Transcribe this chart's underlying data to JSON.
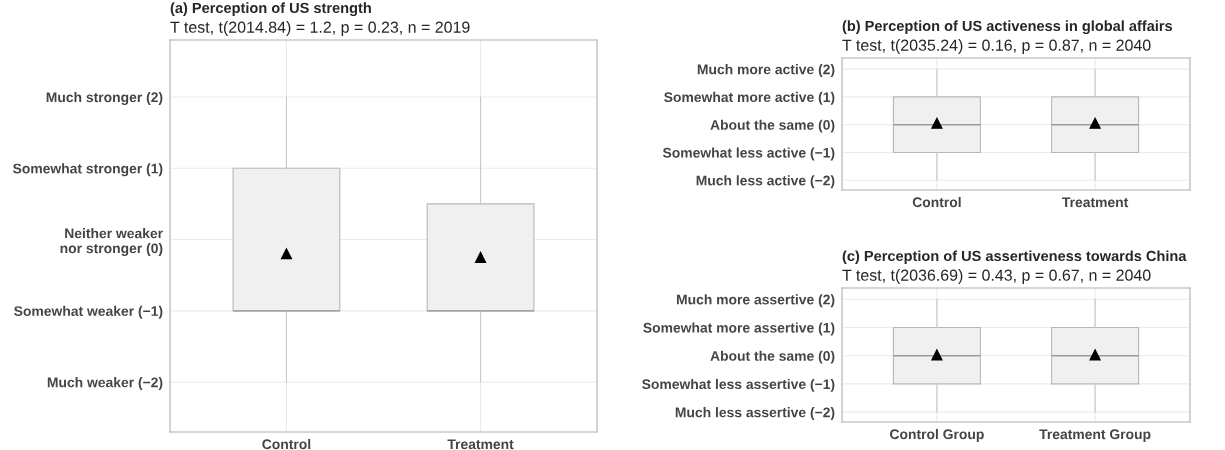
{
  "chart_data": [
    {
      "type": "box",
      "title": "(a) Perception of US strength",
      "subtitle": "T test, t(2014.84) = 1.2, p = 0.23, n = 2019",
      "categories": [
        "Control",
        "Treatment"
      ],
      "grid": true,
      "marker": "triangle",
      "boxes": [
        {
          "low": -2,
          "q1": -1,
          "median": -1,
          "q3": 1,
          "high": 2,
          "mean": -0.2
        },
        {
          "low": -2,
          "q1": -1,
          "median": -1,
          "q3": 0.5,
          "high": 2,
          "mean": -0.25
        }
      ],
      "ylim": [
        -2.7,
        2.8
      ],
      "yticks": [
        {
          "value": -2,
          "label": "Much weaker (−2)"
        },
        {
          "value": -1,
          "label": "Somewhat weaker (−1)"
        },
        {
          "value": 0,
          "label": "Neither weaker\nnor stronger (0)"
        },
        {
          "value": 1,
          "label": "Somewhat stronger (1)"
        },
        {
          "value": 2,
          "label": "Much stronger (2)"
        }
      ]
    },
    {
      "type": "box",
      "title": "(b) Perception of US activeness in global affairs",
      "subtitle": "T test, t(2035.24) = 0.16, p = 0.87, n = 2040",
      "categories": [
        "Control",
        "Treatment"
      ],
      "grid": true,
      "marker": "triangle",
      "boxes": [
        {
          "low": -2,
          "q1": -1,
          "median": 0,
          "q3": 1,
          "high": 2,
          "mean": 0.05
        },
        {
          "low": -2,
          "q1": -1,
          "median": 0,
          "q3": 1,
          "high": 2,
          "mean": 0.05
        }
      ],
      "ylim": [
        -2.35,
        2.4
      ],
      "yticks": [
        {
          "value": -2,
          "label": "Much less active (−2)"
        },
        {
          "value": -1,
          "label": "Somewhat less active (−1)"
        },
        {
          "value": 0,
          "label": "About the same (0)"
        },
        {
          "value": 1,
          "label": "Somewhat more active (1)"
        },
        {
          "value": 2,
          "label": "Much more active (2)"
        }
      ]
    },
    {
      "type": "box",
      "title": "(c) Perception of US assertiveness towards China",
      "subtitle": "T test, t(2036.69) = 0.43, p = 0.67, n = 2040",
      "categories": [
        "Control Group",
        "Treatment Group"
      ],
      "grid": true,
      "marker": "triangle",
      "boxes": [
        {
          "low": -2,
          "q1": -1,
          "median": 0,
          "q3": 1,
          "high": 2,
          "mean": 0.03
        },
        {
          "low": -2,
          "q1": -1,
          "median": 0,
          "q3": 1,
          "high": 2,
          "mean": 0.03
        }
      ],
      "ylim": [
        -2.35,
        2.4
      ],
      "yticks": [
        {
          "value": -2,
          "label": "Much less assertive (−2)"
        },
        {
          "value": -1,
          "label": "Somewhat less assertive (−1)"
        },
        {
          "value": 0,
          "label": "About the same (0)"
        },
        {
          "value": 1,
          "label": "Somewhat more assertive (1)"
        },
        {
          "value": 2,
          "label": "Much more assertive (2)"
        }
      ]
    }
  ]
}
